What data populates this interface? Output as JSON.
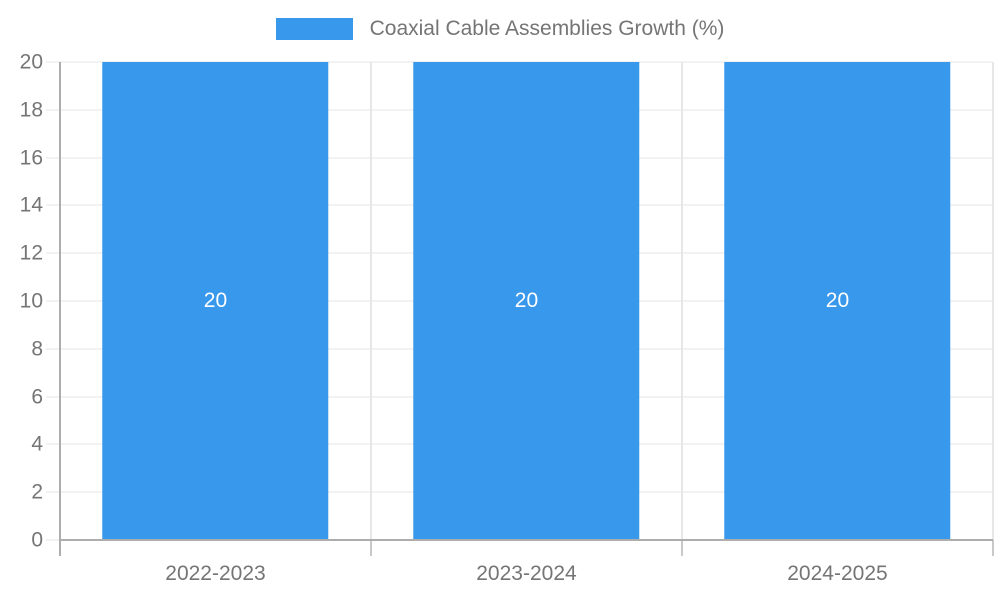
{
  "chart_data": {
    "type": "bar",
    "title": "Coaxial Cable Assemblies Growth (%)",
    "categories": [
      "2022-2023",
      "2023-2024",
      "2024-2025"
    ],
    "series": [
      {
        "name": "Coaxial Cable Assemblies Growth (%)",
        "values": [
          20,
          20,
          20
        ]
      }
    ],
    "bar_value_labels": [
      "20",
      "20",
      "20"
    ],
    "xlabel": "",
    "ylabel": "",
    "ylim": [
      0,
      20
    ],
    "ytick_step": 2,
    "grid": true,
    "legend_position": "top-center",
    "colors": {
      "bar": "#3898ec",
      "grid_line": "#e4e4e4",
      "category_grid_line": "#e7e7e7",
      "category_tick": "#c9c9c9",
      "axis_line": "#adadad",
      "tick_text": "#757575",
      "legend_text": "#757575",
      "bar_label_text": "#ffffff",
      "background": "#ffffff"
    }
  }
}
